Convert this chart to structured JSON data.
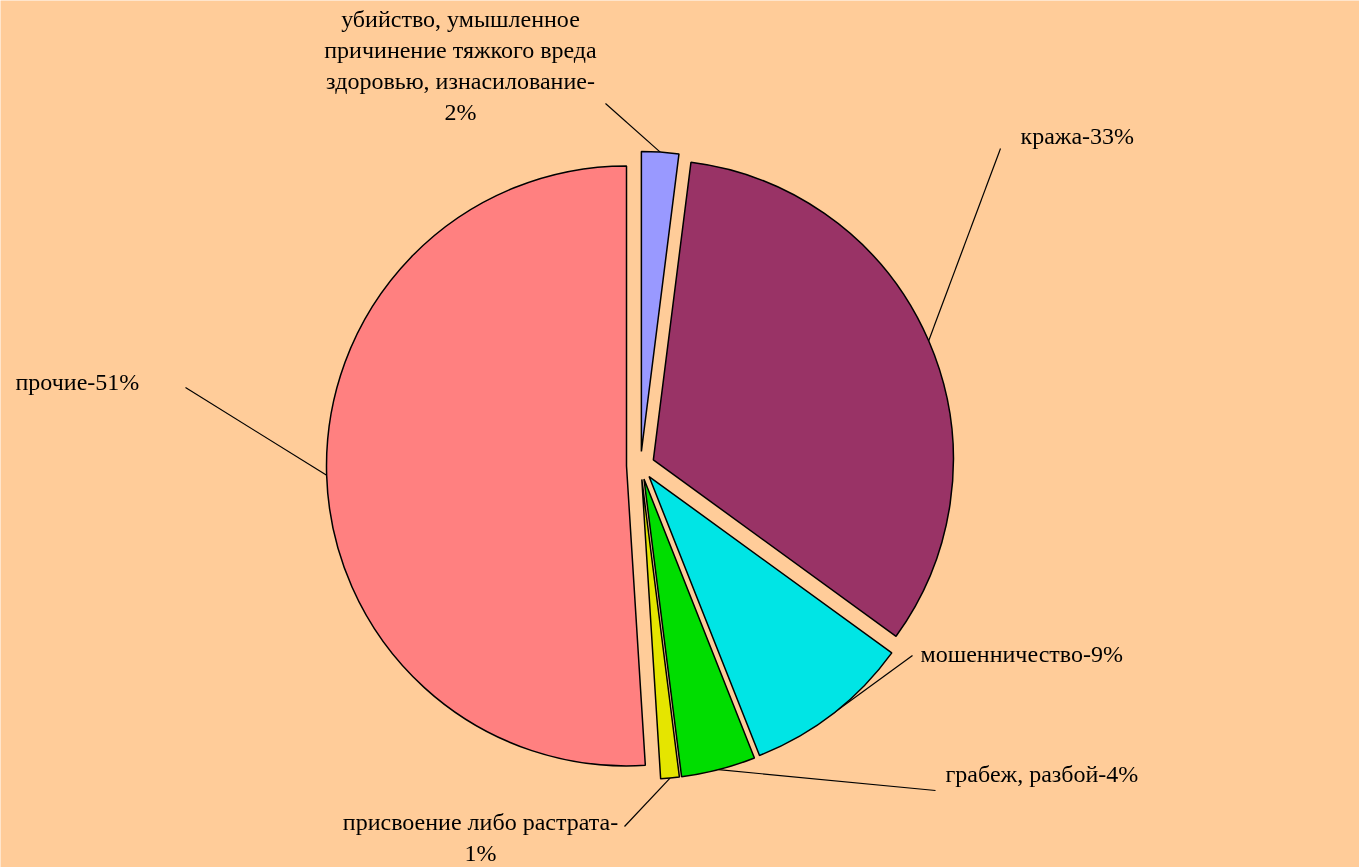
{
  "chart_data": {
    "type": "pie",
    "categories": [
      "убийство, умышленное причинение тяжкого вреда здоровью, изнасилование-2%",
      "кража-33%",
      "мошенничество-9%",
      "грабеж, разбой-4%",
      "присвоение либо растрата-1%",
      "прочие-51%"
    ],
    "values": [
      2,
      33,
      9,
      4,
      1,
      51
    ],
    "colors": [
      "#9999ff",
      "#993366",
      "#00e5e5",
      "#00dd00",
      "#e5e500",
      "#ff8080"
    ]
  }
}
